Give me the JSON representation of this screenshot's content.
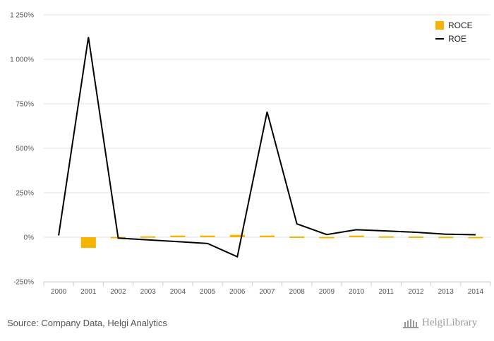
{
  "chart_data": {
    "type": "bar+line",
    "categories": [
      "2000",
      "2001",
      "2002",
      "2003",
      "2004",
      "2005",
      "2006",
      "2007",
      "2008",
      "2009",
      "2010",
      "2011",
      "2012",
      "2013",
      "2014"
    ],
    "series": [
      {
        "name": "ROCE",
        "type": "bar",
        "color": "#f5b400",
        "values": [
          null,
          -60,
          2,
          5,
          9,
          9,
          13,
          9,
          4,
          2,
          9,
          5,
          4,
          3,
          2
        ]
      },
      {
        "name": "ROE",
        "type": "line",
        "color": "#000000",
        "values": [
          10,
          1125,
          -5,
          -15,
          -25,
          -35,
          -110,
          705,
          75,
          15,
          42,
          35,
          28,
          17,
          14
        ]
      }
    ],
    "y_ticks": [
      -250,
      0,
      250,
      500,
      750,
      1000,
      1250
    ],
    "y_tick_labels": [
      "-250%",
      "0%",
      "250%",
      "500%",
      "750%",
      "1 000%",
      "1 250%"
    ],
    "ylim": [
      -250,
      1250
    ],
    "grid": "horizontal",
    "legend_position": "top-right"
  },
  "footer": {
    "source": "Source: Company Data, Helgi Analytics",
    "logo_text": "HelgiLibrary"
  }
}
